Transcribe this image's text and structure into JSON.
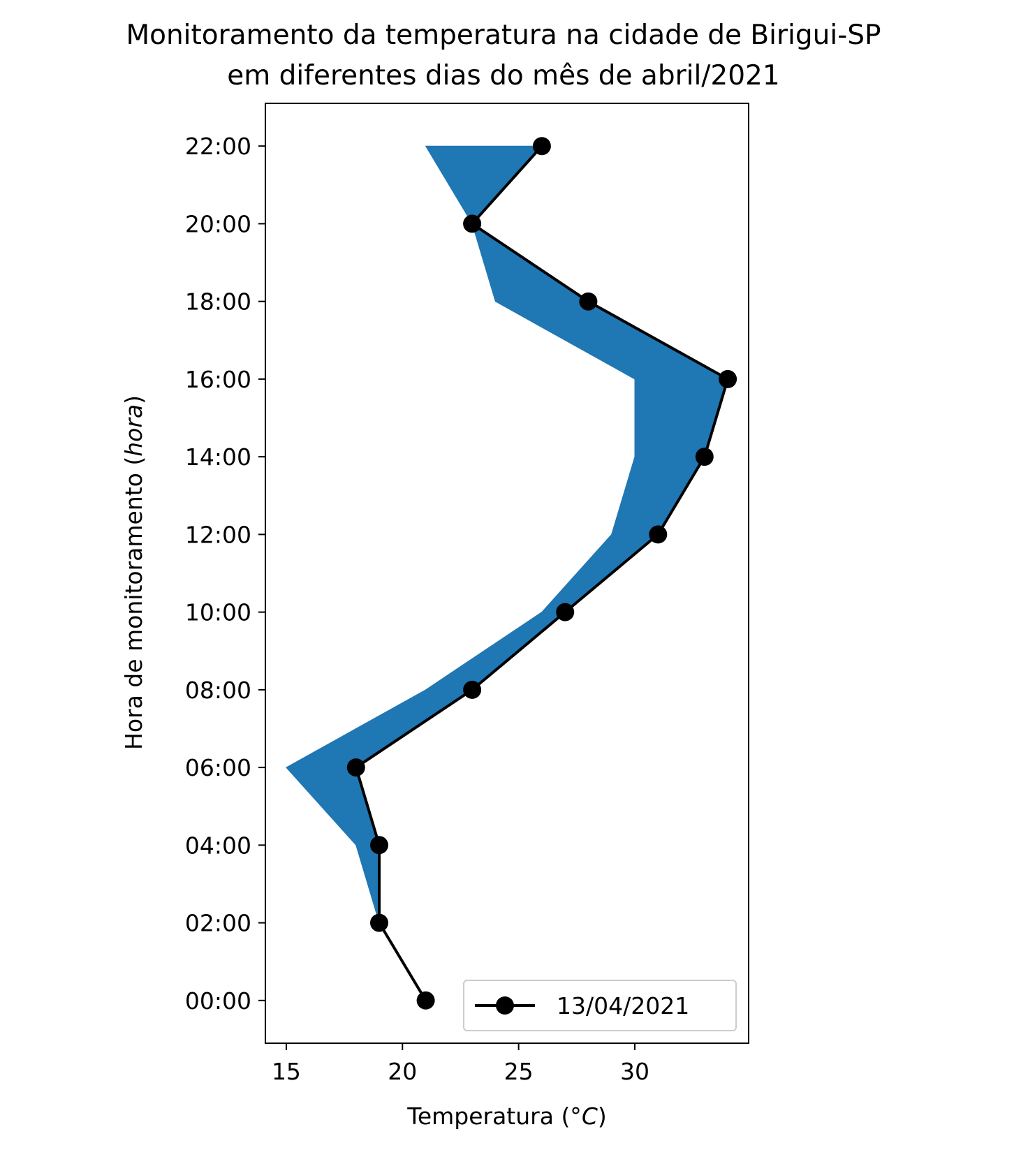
{
  "chart_data": {
    "type": "line",
    "title_lines": [
      "Monitoramento da temperatura na cidade de Birigui-SP",
      "em diferentes dias do mês de abril/2021"
    ],
    "xlabel_prefix": "Temperatura (°",
    "xlabel_unit": "C",
    "xlabel_suffix": ")",
    "ylabel_prefix": "Hora de monitoramento (",
    "ylabel_unit": "hora",
    "ylabel_suffix": ")",
    "xlim": [
      14.1,
      34.9
    ],
    "ylim": [
      -1.1,
      23.1
    ],
    "x_ticks": [
      15,
      20,
      25,
      30
    ],
    "y_ticks": [
      0,
      2,
      4,
      6,
      8,
      10,
      12,
      14,
      16,
      18,
      20,
      22
    ],
    "y_tick_labels": [
      "00:00",
      "02:00",
      "04:00",
      "06:00",
      "08:00",
      "10:00",
      "12:00",
      "14:00",
      "16:00",
      "18:00",
      "20:00",
      "22:00"
    ],
    "series": [
      {
        "name": "13/04/2021",
        "color": "#000000",
        "marker": "circle",
        "hours": [
          0,
          2,
          4,
          6,
          8,
          10,
          12,
          14,
          16,
          18,
          20,
          22
        ],
        "temperatures": [
          21,
          19,
          19,
          18,
          23,
          27,
          31,
          33,
          34,
          28,
          23,
          26
        ]
      }
    ],
    "fill_band": {
      "color": "#1f77b4",
      "hours": [
        2,
        4,
        6,
        8,
        10,
        12,
        14,
        16,
        18,
        20,
        22
      ],
      "lower_temperatures": [
        19,
        18,
        15,
        21,
        26,
        29,
        30,
        30,
        24,
        23,
        21
      ],
      "upper_temperatures": [
        19,
        19,
        18,
        23,
        27,
        31,
        33,
        34,
        28,
        23,
        26
      ]
    },
    "legend_position": "lower-right",
    "grid": false
  }
}
